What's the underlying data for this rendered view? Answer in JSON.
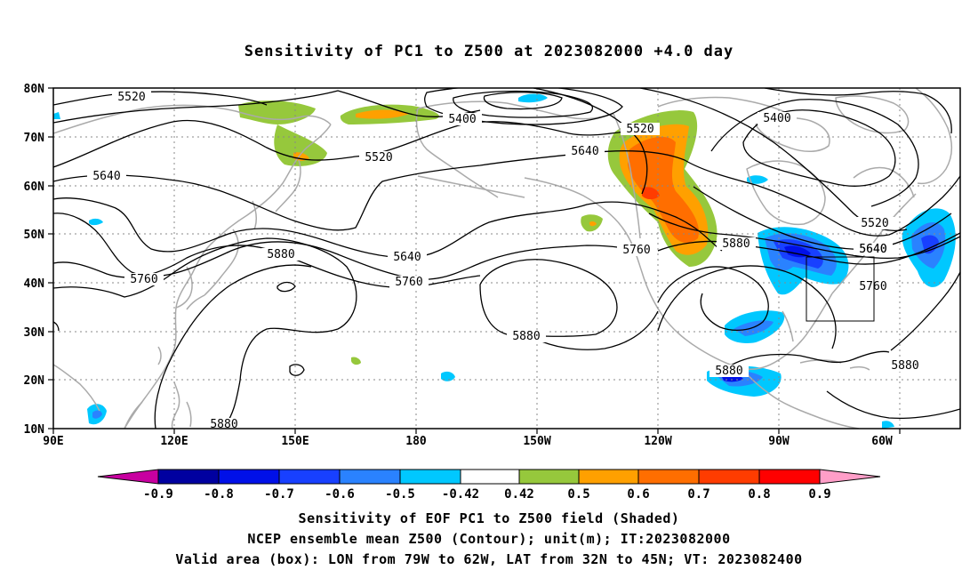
{
  "title": "Sensitivity of PC1 to Z500 at 2023082000 +4.0 day",
  "colors": {
    "land": "#aaaaaa",
    "contour": "#000000",
    "grid": "#888888"
  },
  "axes": {
    "lat_ticks": [
      "80N",
      "70N",
      "60N",
      "50N",
      "40N",
      "30N",
      "20N",
      "10N"
    ],
    "lon_ticks": [
      "90E",
      "120E",
      "150E",
      "180",
      "150W",
      "120W",
      "90W",
      "60W"
    ]
  },
  "contour_labels": [
    "5520",
    "5400",
    "5520",
    "5640",
    "5520",
    "5400",
    "5640",
    "5640",
    "5760",
    "5880",
    "5640",
    "5760",
    "5760",
    "5880",
    "5880",
    "5520",
    "5640",
    "5760",
    "5880",
    "5880",
    "5880"
  ],
  "colorbar": {
    "labels": [
      "-0.9",
      "-0.8",
      "-0.7",
      "-0.6",
      "-0.5",
      "-0.42",
      "0.42",
      "0.5",
      "0.6",
      "0.7",
      "0.8",
      "0.9"
    ],
    "colors": [
      "#0000a0",
      "#0010e8",
      "#1840ff",
      "#2a82ff",
      "#00c8ff",
      "#ffffff",
      "#96c83c",
      "#ffa000",
      "#ff6e00",
      "#ff3c00",
      "#ff0000"
    ],
    "low_extend_color": "#c800a0",
    "high_extend_color": "#ff9ec8"
  },
  "footer": {
    "line1": "Sensitivity of EOF PC1 to Z500 field (Shaded)",
    "line2": "NCEP ensemble mean Z500 (Contour); unit(m); IT:2023082000",
    "line3": "Valid area (box): LON from 79W to 62W, LAT from 32N to 45N; VT: 2023082400"
  }
}
